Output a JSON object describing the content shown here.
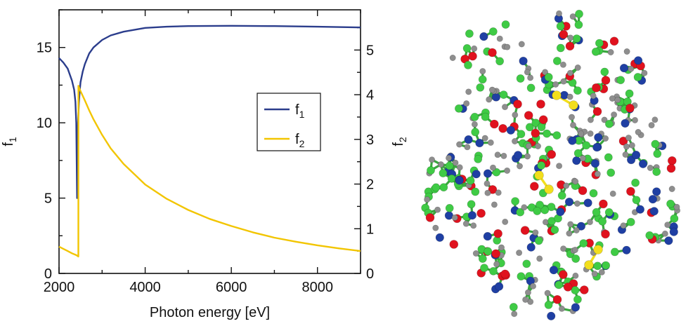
{
  "chart_data": {
    "type": "line",
    "title": "",
    "xlabel": "Photon energy [eV]",
    "ylabel_left": "f",
    "ylabel_left_sub": "1",
    "ylabel_right": "f",
    "ylabel_right_sub": "2",
    "xlim": [
      2000,
      9000
    ],
    "ylim_left": [
      0,
      17.5
    ],
    "ylim_right": [
      0,
      5.9
    ],
    "x_ticks": [
      2000,
      4000,
      6000,
      8000
    ],
    "x_tick_labels": [
      "2000",
      "4000",
      "6000",
      "8000"
    ],
    "y_left_ticks": [
      0,
      5,
      10,
      15
    ],
    "y_left_tick_labels": [
      "0",
      "5",
      "10",
      "15"
    ],
    "y_right_ticks": [
      0,
      1,
      2,
      3,
      4,
      5
    ],
    "y_right_tick_labels": [
      "0",
      "1",
      "2",
      "3",
      "4",
      "5"
    ],
    "legend_position": "center-right",
    "grid": false,
    "series": [
      {
        "name": "f",
        "name_sub": "1",
        "axis": "left",
        "color": "#2b3d8c",
        "x": [
          2000,
          2100,
          2200,
          2300,
          2350,
          2380,
          2400,
          2420,
          2440,
          2460,
          2480,
          2500,
          2550,
          2600,
          2700,
          2800,
          3000,
          3200,
          3500,
          4000,
          4500,
          5000,
          6000,
          7000,
          8000,
          9000
        ],
        "y": [
          14.3,
          14.0,
          13.6,
          12.8,
          12.2,
          11.4,
          10.0,
          5.0,
          10.0,
          11.3,
          12.1,
          12.7,
          13.4,
          13.9,
          14.6,
          15.0,
          15.5,
          15.8,
          16.05,
          16.3,
          16.38,
          16.42,
          16.44,
          16.42,
          16.38,
          16.33
        ]
      },
      {
        "name": "f",
        "name_sub": "2",
        "axis": "right",
        "color": "#f2c500",
        "x": [
          2000,
          2100,
          2200,
          2300,
          2400,
          2449,
          2450,
          2500,
          2600,
          2700,
          2800,
          3000,
          3200,
          3500,
          4000,
          4500,
          5000,
          5500,
          6000,
          6500,
          7000,
          7500,
          8000,
          8500,
          9000
        ],
        "y": [
          0.6,
          0.55,
          0.5,
          0.45,
          0.41,
          0.38,
          4.2,
          4.08,
          3.87,
          3.65,
          3.45,
          3.1,
          2.8,
          2.45,
          1.99,
          1.67,
          1.42,
          1.22,
          1.06,
          0.92,
          0.8,
          0.71,
          0.63,
          0.56,
          0.5
        ]
      }
    ]
  },
  "molecule": {
    "colors": {
      "carbon": "#3fcb45",
      "hydrogen": "#8e8e8e",
      "oxygen": "#e0121e",
      "nitrogen": "#1f3fa3",
      "sulfur": "#f2de1d"
    }
  }
}
